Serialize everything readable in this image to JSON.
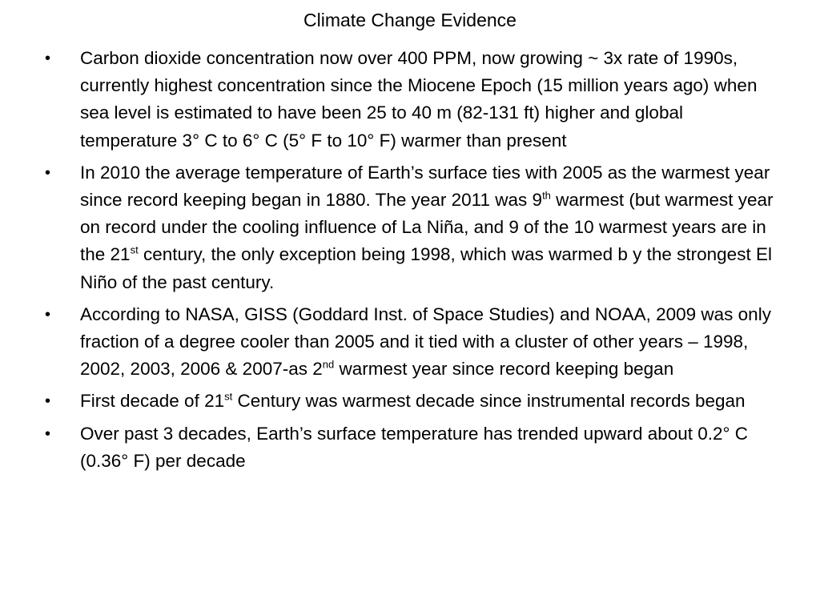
{
  "slide": {
    "title": "Climate Change Evidence",
    "bullet_symbol": "•",
    "bullets": [
      {
        "parts": [
          {
            "text": "Carbon dioxide concentration now over 400 PPM, now growing ~ 3x rate of 1990s, currently highest concentration since the Miocene Epoch (15 million years ago) when sea level is estimated to have been 25 to 40 m (82-131 ft) higher and global temperature 3° C to 6° C (5° F to 10° F) warmer than present"
          }
        ]
      },
      {
        "parts": [
          {
            "text": "In 2010 the average temperature of Earth’s surface ties with 2005 as the warmest year since record keeping began in 1880. The year 2011 was 9"
          },
          {
            "sup": "th"
          },
          {
            "text": " warmest (but warmest year on record under the cooling influence of La Niña, and 9 of the 10 warmest years are in the 21"
          },
          {
            "sup": "st"
          },
          {
            "text": " century, the only exception being 1998, which was warmed b y the strongest El Niño of the past century."
          }
        ]
      },
      {
        "parts": [
          {
            "text": "According to NASA, GISS (Goddard Inst. of Space Studies) and NOAA, 2009 was only fraction of a degree cooler than 2005 and it tied with a cluster of other years – 1998, 2002, 2003, 2006 & 2007-as 2"
          },
          {
            "sup": "nd"
          },
          {
            "text": " warmest year since record keeping began"
          }
        ]
      },
      {
        "parts": [
          {
            "text": "First decade of 21"
          },
          {
            "sup": "st"
          },
          {
            "text": " Century was warmest decade since instrumental records began"
          }
        ]
      },
      {
        "parts": [
          {
            "text": "Over past 3 decades, Earth’s surface temperature has trended upward about 0.2° C (0.36° F) per decade"
          }
        ]
      }
    ]
  }
}
